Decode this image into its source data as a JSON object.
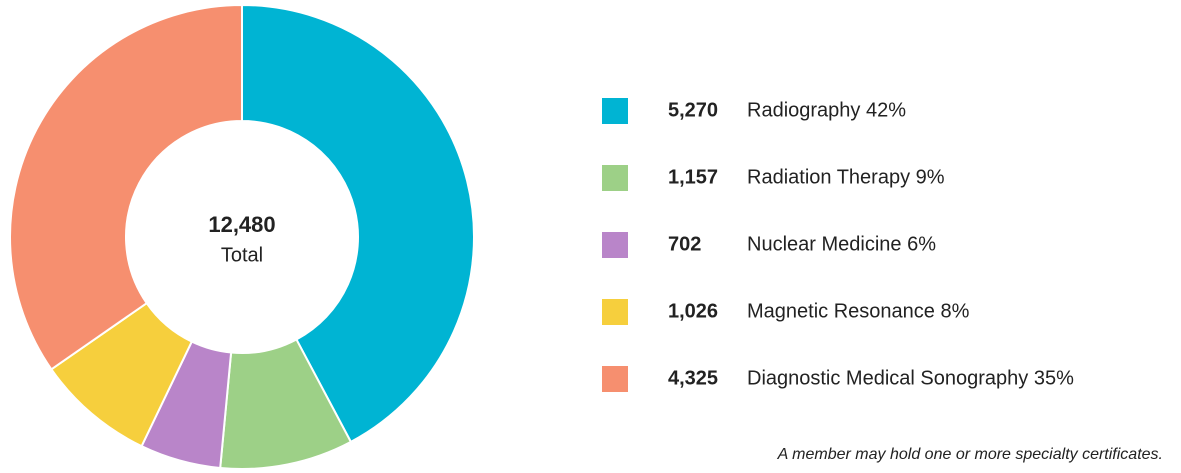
{
  "chart_data": {
    "type": "donut",
    "categories": [
      "Radiography 42%",
      "Radiation Therapy 9%",
      "Nuclear Medicine 6%",
      "Magnetic Resonance 8%",
      "Diagnostic Medical Sonography 35%"
    ],
    "values": [
      5270,
      1157,
      702,
      1026,
      4325
    ],
    "value_labels": [
      "5,270",
      "1,157",
      "702",
      "1,026",
      "4,325"
    ],
    "colors": [
      "#00b4d3",
      "#9dd087",
      "#b985c9",
      "#f6cf3d",
      "#f68f6f"
    ],
    "total": {
      "value": 12480,
      "label": "12,480"
    },
    "total_caption": "Total",
    "footnote": "A member may hold one or more specialty certificates."
  }
}
